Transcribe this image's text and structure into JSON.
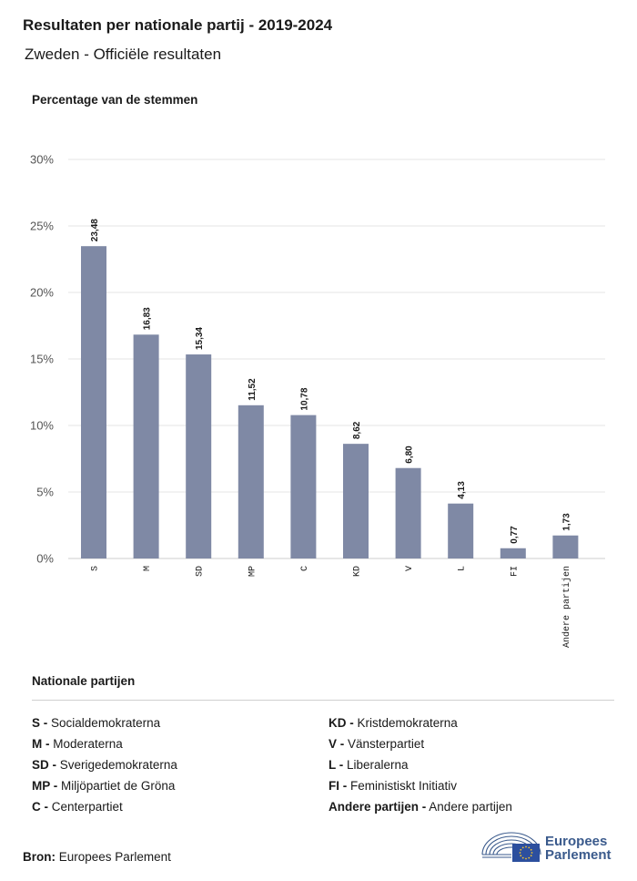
{
  "header": {
    "title": "Resultaten per nationale partij - 2019-2024",
    "subtitle": "Zweden - Officiële resultaten"
  },
  "colors": {
    "bar": "#7f89a5",
    "grid": "#e6e6e6",
    "axis": "#cccccc",
    "logo": "#3a5a8c",
    "flag": "#2c4f9e",
    "star": "#f2c230"
  },
  "chart_data": {
    "type": "bar",
    "ylabel": "Percentage van de stemmen",
    "ylim": [
      0,
      30
    ],
    "yticks": [
      0,
      5,
      10,
      15,
      20,
      25,
      30
    ],
    "ytick_labels": [
      "0%",
      "5%",
      "10%",
      "15%",
      "20%",
      "25%",
      "30%"
    ],
    "categories": [
      "S",
      "M",
      "SD",
      "MP",
      "C",
      "KD",
      "V",
      "L",
      "FI",
      "Andere partijen"
    ],
    "values": [
      23.48,
      16.83,
      15.34,
      11.52,
      10.78,
      8.62,
      6.8,
      4.13,
      0.77,
      1.73
    ],
    "value_labels": [
      "23,48",
      "16,83",
      "15,34",
      "11,52",
      "10,78",
      "8,62",
      "6,80",
      "4,13",
      "0,77",
      "1,73"
    ],
    "grid": true
  },
  "legend": {
    "title": "Nationale partijen",
    "left": [
      {
        "code": "S -",
        "name": "Socialdemokraterna"
      },
      {
        "code": "M -",
        "name": "Moderaterna"
      },
      {
        "code": "SD -",
        "name": "Sverigedemokraterna"
      },
      {
        "code": "MP -",
        "name": "Miljöpartiet de Gröna"
      },
      {
        "code": "C -",
        "name": "Centerpartiet"
      }
    ],
    "right": [
      {
        "code": "KD -",
        "name": "Kristdemokraterna"
      },
      {
        "code": "V -",
        "name": "Vänsterpartiet"
      },
      {
        "code": "L -",
        "name": "Liberalerna"
      },
      {
        "code": "FI -",
        "name": "Feministiskt Initiativ"
      },
      {
        "code": "Andere partijen -",
        "name": "Andere partijen"
      }
    ]
  },
  "source": {
    "label": "Bron:",
    "value": "Europees Parlement"
  },
  "logo": {
    "line1": "Europees",
    "line2": "Parlement",
    "icon": "parliament-hemicycle-icon"
  }
}
